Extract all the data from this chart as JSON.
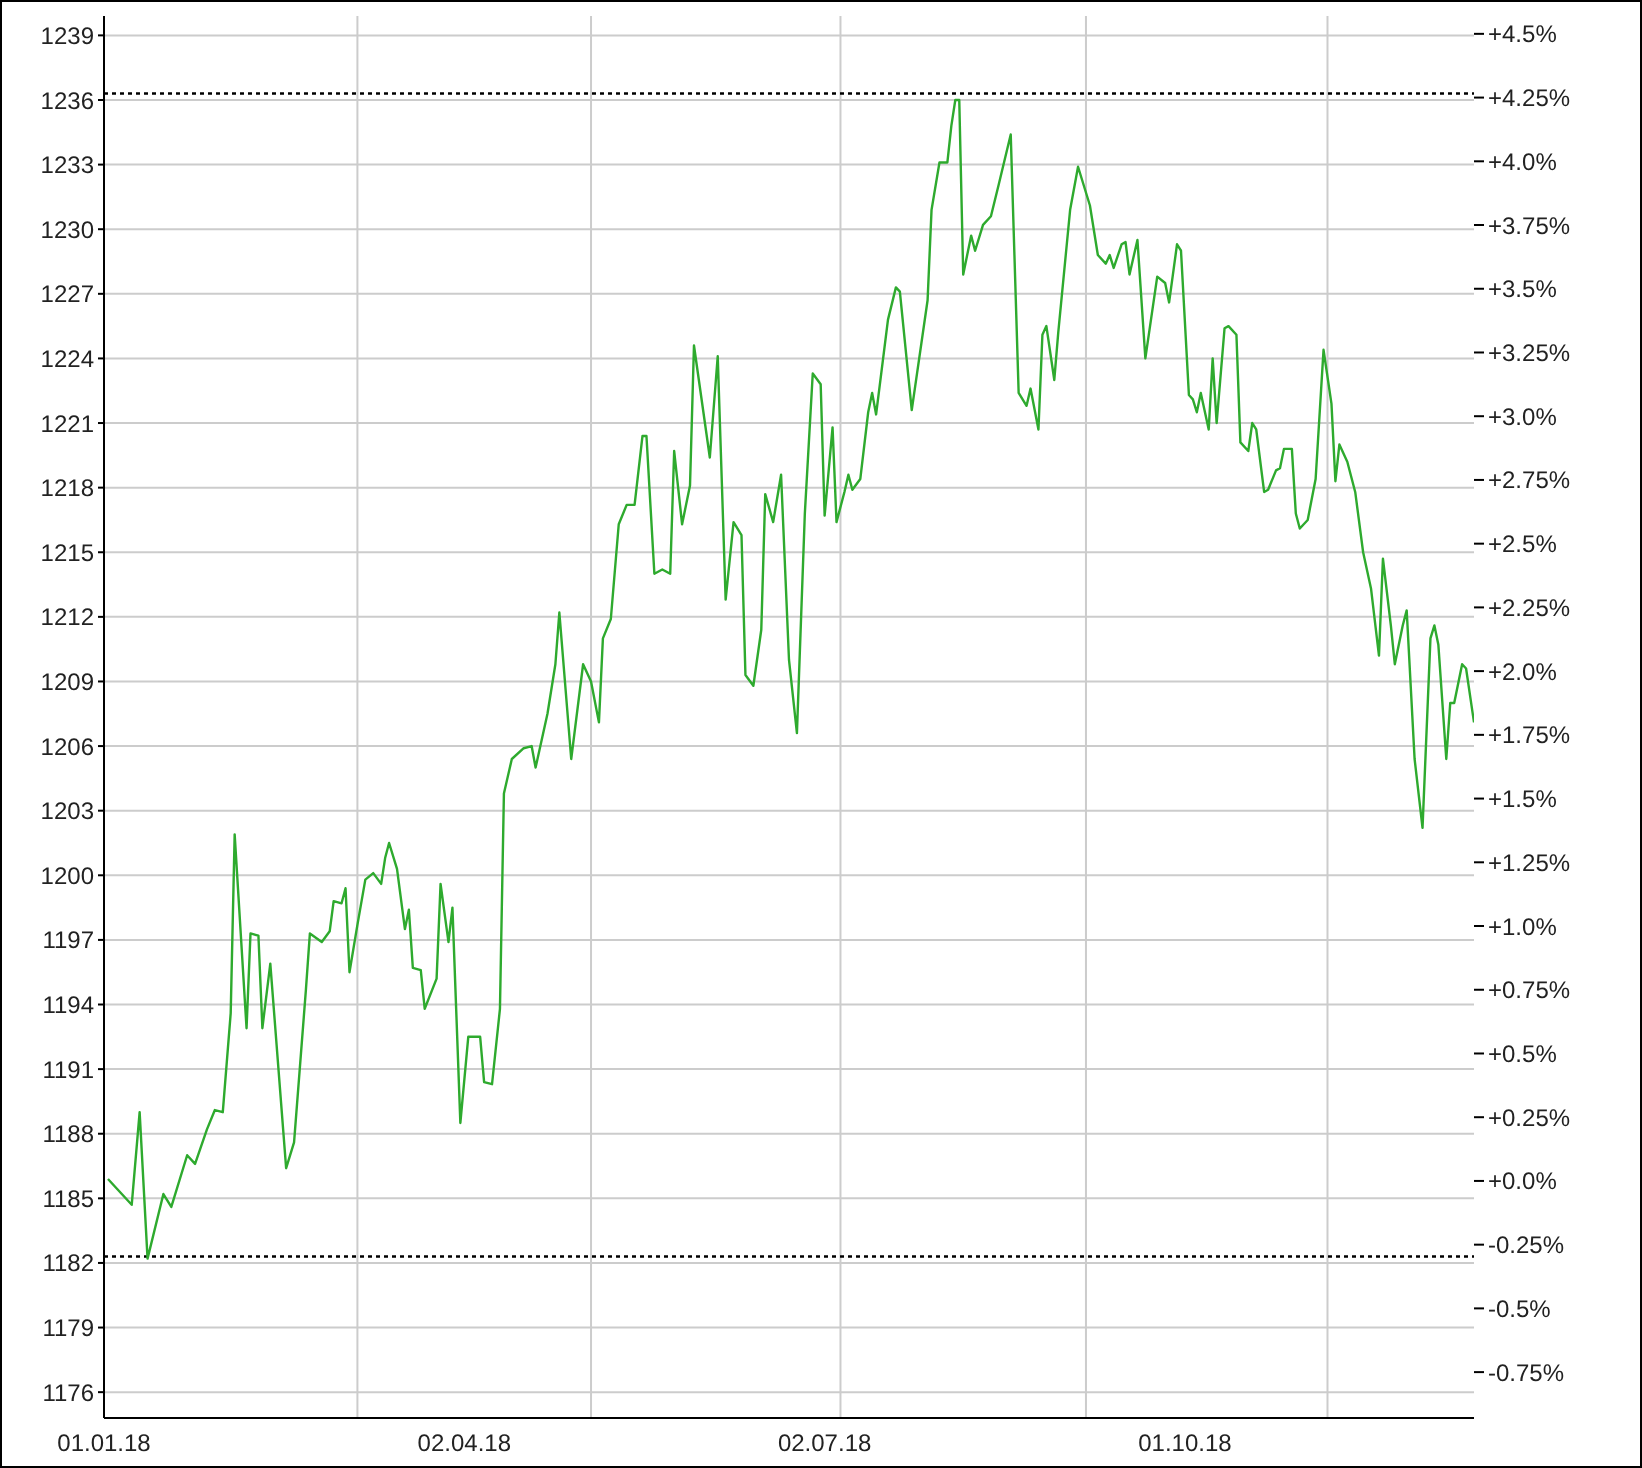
{
  "chart_data": {
    "type": "line",
    "marker": "none",
    "line_style": "solid",
    "grid": true,
    "legend": false,
    "x": [
      "2018-01-02",
      "2018-01-08",
      "2018-01-10",
      "2018-01-12",
      "2018-01-16",
      "2018-01-18",
      "2018-01-22",
      "2018-01-24",
      "2018-01-27",
      "2018-01-29",
      "2018-01-31",
      "2018-02-02",
      "2018-02-03",
      "2018-02-06",
      "2018-02-07",
      "2018-02-09",
      "2018-02-10",
      "2018-02-12",
      "2018-02-16",
      "2018-02-18",
      "2018-02-21",
      "2018-02-22",
      "2018-02-25",
      "2018-02-27",
      "2018-02-28",
      "2018-03-02",
      "2018-03-03",
      "2018-03-04",
      "2018-03-06",
      "2018-03-08",
      "2018-03-10",
      "2018-03-12",
      "2018-03-13",
      "2018-03-14",
      "2018-03-16",
      "2018-03-18",
      "2018-03-19",
      "2018-03-20",
      "2018-03-22",
      "2018-03-23",
      "2018-03-26",
      "2018-03-27",
      "2018-03-29",
      "2018-03-30",
      "2018-04-01",
      "2018-04-03",
      "2018-04-06",
      "2018-04-07",
      "2018-04-09",
      "2018-04-11",
      "2018-04-12",
      "2018-04-14",
      "2018-04-17",
      "2018-04-19",
      "2018-04-20",
      "2018-04-23",
      "2018-04-25",
      "2018-04-26",
      "2018-04-29",
      "2018-05-02",
      "2018-05-04",
      "2018-05-06",
      "2018-05-07",
      "2018-05-09",
      "2018-05-11",
      "2018-05-13",
      "2018-05-15",
      "2018-05-17",
      "2018-05-18",
      "2018-05-20",
      "2018-05-22",
      "2018-05-24",
      "2018-05-25",
      "2018-05-27",
      "2018-05-29",
      "2018-05-30",
      "2018-06-03",
      "2018-06-05",
      "2018-06-07",
      "2018-06-09",
      "2018-06-11",
      "2018-06-12",
      "2018-06-14",
      "2018-06-16",
      "2018-06-17",
      "2018-06-19",
      "2018-06-21",
      "2018-06-23",
      "2018-06-25",
      "2018-06-27",
      "2018-06-29",
      "2018-07-01",
      "2018-07-02",
      "2018-07-04",
      "2018-07-05",
      "2018-07-07",
      "2018-07-08",
      "2018-07-09",
      "2018-07-11",
      "2018-07-13",
      "2018-07-14",
      "2018-07-15",
      "2018-07-18",
      "2018-07-20",
      "2018-07-21",
      "2018-07-24",
      "2018-07-28",
      "2018-07-29",
      "2018-07-31",
      "2018-08-02",
      "2018-08-03",
      "2018-08-04",
      "2018-08-05",
      "2018-08-06",
      "2018-08-08",
      "2018-08-09",
      "2018-08-11",
      "2018-08-13",
      "2018-08-15",
      "2018-08-18",
      "2018-08-20",
      "2018-08-22",
      "2018-08-23",
      "2018-08-25",
      "2018-08-26",
      "2018-08-27",
      "2018-08-29",
      "2018-08-30",
      "2018-09-02",
      "2018-09-04",
      "2018-09-07",
      "2018-09-09",
      "2018-09-11",
      "2018-09-12",
      "2018-09-13",
      "2018-09-15",
      "2018-09-16",
      "2018-09-17",
      "2018-09-19",
      "2018-09-21",
      "2018-09-24",
      "2018-09-26",
      "2018-09-27",
      "2018-09-29",
      "2018-09-30",
      "2018-10-02",
      "2018-10-03",
      "2018-10-04",
      "2018-10-05",
      "2018-10-07",
      "2018-10-08",
      "2018-10-09",
      "2018-10-11",
      "2018-10-12",
      "2018-10-14",
      "2018-10-15",
      "2018-10-17",
      "2018-10-18",
      "2018-10-19",
      "2018-10-21",
      "2018-10-22",
      "2018-10-24",
      "2018-10-25",
      "2018-10-26",
      "2018-10-28",
      "2018-10-29",
      "2018-10-30",
      "2018-11-01",
      "2018-11-03",
      "2018-11-05",
      "2018-11-07",
      "2018-11-08",
      "2018-11-09",
      "2018-11-11",
      "2018-11-13",
      "2018-11-15",
      "2018-11-17",
      "2018-11-19",
      "2018-11-20",
      "2018-11-22",
      "2018-11-23",
      "2018-11-25",
      "2018-11-26",
      "2018-11-28",
      "2018-11-30",
      "2018-12-02",
      "2018-12-03",
      "2018-12-04",
      "2018-12-06",
      "2018-12-07",
      "2018-12-08",
      "2018-12-10",
      "2018-12-11",
      "2018-12-13"
    ],
    "series": [
      {
        "color": "#2eaa2e",
        "values": [
          1185.9,
          1184.7,
          1189.0,
          1182.2,
          1185.2,
          1184.6,
          1187.0,
          1186.6,
          1188.2,
          1189.1,
          1189.0,
          1193.6,
          1201.9,
          1192.9,
          1197.3,
          1197.2,
          1192.9,
          1195.9,
          1186.4,
          1187.6,
          1194.7,
          1197.3,
          1196.9,
          1197.4,
          1198.8,
          1198.7,
          1199.4,
          1195.5,
          1197.7,
          1199.8,
          1200.1,
          1199.6,
          1200.8,
          1201.5,
          1200.3,
          1197.5,
          1198.4,
          1195.7,
          1195.6,
          1193.8,
          1195.2,
          1199.6,
          1196.9,
          1198.5,
          1188.5,
          1192.5,
          1192.5,
          1190.4,
          1190.3,
          1193.8,
          1203.8,
          1205.4,
          1205.9,
          1206.0,
          1205.0,
          1207.5,
          1209.8,
          1212.2,
          1205.4,
          1209.8,
          1209.0,
          1207.1,
          1211.0,
          1211.9,
          1216.3,
          1217.2,
          1217.2,
          1220.4,
          1220.4,
          1214.0,
          1214.2,
          1214.0,
          1219.7,
          1216.3,
          1218.1,
          1224.6,
          1219.4,
          1224.1,
          1212.8,
          1216.4,
          1215.8,
          1209.3,
          1208.8,
          1211.4,
          1217.7,
          1216.4,
          1218.6,
          1210.0,
          1206.6,
          1216.8,
          1223.3,
          1222.8,
          1216.7,
          1220.8,
          1216.4,
          1217.8,
          1218.6,
          1217.9,
          1218.4,
          1221.5,
          1222.4,
          1221.4,
          1225.8,
          1227.3,
          1227.1,
          1221.6,
          1226.7,
          1230.9,
          1233.1,
          1233.1,
          1234.8,
          1236.0,
          1236.0,
          1227.9,
          1229.7,
          1229.0,
          1230.2,
          1230.6,
          1232.1,
          1234.4,
          1222.4,
          1221.8,
          1222.6,
          1220.7,
          1225.1,
          1225.5,
          1223.0,
          1225.2,
          1230.9,
          1232.9,
          1231.1,
          1228.8,
          1228.4,
          1228.8,
          1228.2,
          1229.3,
          1229.4,
          1227.9,
          1229.5,
          1224.0,
          1227.8,
          1227.5,
          1226.6,
          1229.3,
          1229.0,
          1222.3,
          1222.1,
          1221.5,
          1222.4,
          1220.7,
          1224.0,
          1221.0,
          1225.4,
          1225.5,
          1225.1,
          1220.1,
          1219.7,
          1221.0,
          1220.7,
          1217.8,
          1217.9,
          1218.8,
          1218.9,
          1219.8,
          1219.8,
          1216.8,
          1216.1,
          1216.5,
          1218.4,
          1224.4,
          1221.9,
          1218.3,
          1220.0,
          1219.2,
          1217.8,
          1215.0,
          1213.3,
          1210.2,
          1214.7,
          1211.6,
          1209.8,
          1211.6,
          1212.3,
          1205.4,
          1202.2,
          1211.0,
          1211.6,
          1210.7,
          1205.4,
          1208.0,
          1208.0,
          1209.8,
          1209.6,
          1207.1
        ]
      }
    ],
    "xlim": [
      "2018-01-01",
      "2018-12-13"
    ],
    "xticks": [
      {
        "value": "2018-01-01",
        "label": "01.01.18"
      },
      {
        "value": "2018-03-06",
        "label": null
      },
      {
        "value": "2018-04-02",
        "label": "02.04.18"
      },
      {
        "value": "2018-05-04",
        "label": null
      },
      {
        "value": "2018-07-02",
        "label": "02.07.18"
      },
      {
        "value": "2018-07-06",
        "label": null
      },
      {
        "value": "2018-09-06",
        "label": null
      },
      {
        "value": "2018-10-01",
        "label": "01.10.18"
      },
      {
        "value": "2018-11-06",
        "label": null
      }
    ],
    "ylim": [
      1174.8,
      1239.9
    ],
    "yticks": [
      1176,
      1179,
      1182,
      1185,
      1188,
      1191,
      1194,
      1197,
      1200,
      1203,
      1206,
      1209,
      1212,
      1215,
      1218,
      1221,
      1224,
      1227,
      1230,
      1233,
      1236,
      1239
    ],
    "y2lim": [
      -0.93,
      4.57
    ],
    "y2ticks": [
      {
        "value": -0.75,
        "label": "-0.75%"
      },
      {
        "value": -0.5,
        "label": "-0.5%"
      },
      {
        "value": -0.25,
        "label": "-0.25%"
      },
      {
        "value": 0,
        "label": "+0.0%"
      },
      {
        "value": 0.25,
        "label": "+0.25%"
      },
      {
        "value": 0.5,
        "label": "+0.5%"
      },
      {
        "value": 0.75,
        "label": "+0.75%"
      },
      {
        "value": 1,
        "label": "+1.0%"
      },
      {
        "value": 1.25,
        "label": "+1.25%"
      },
      {
        "value": 1.5,
        "label": "+1.5%"
      },
      {
        "value": 1.75,
        "label": "+1.75%"
      },
      {
        "value": 2,
        "label": "+2.0%"
      },
      {
        "value": 2.25,
        "label": "+2.25%"
      },
      {
        "value": 2.5,
        "label": "+2.5%"
      },
      {
        "value": 2.75,
        "label": "+2.75%"
      },
      {
        "value": 3,
        "label": "+3.0%"
      },
      {
        "value": 3.25,
        "label": "+3.25%"
      },
      {
        "value": 3.5,
        "label": "+3.5%"
      },
      {
        "value": 3.75,
        "label": "+3.75%"
      },
      {
        "value": 4,
        "label": "+4.0%"
      },
      {
        "value": 4.25,
        "label": "+4.25%"
      },
      {
        "value": 4.5,
        "label": "+4.5%"
      }
    ],
    "ref_lines": [
      {
        "axis": "y",
        "value": 1236.3,
        "color": "#000000",
        "line_style": "dotted"
      },
      {
        "axis": "y",
        "value": 1182.3,
        "color": "#000000",
        "line_style": "dotted"
      }
    ]
  }
}
